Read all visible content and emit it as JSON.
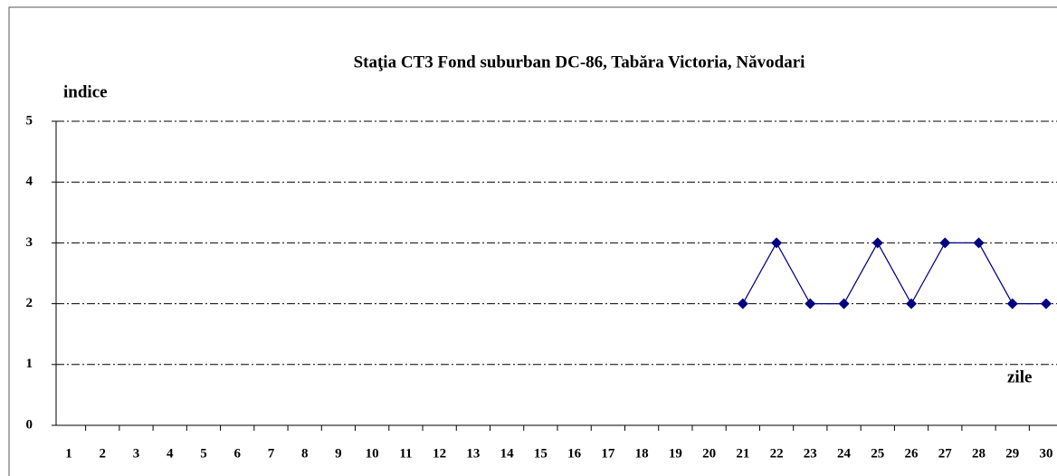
{
  "chart_data": {
    "type": "line",
    "title": "Staţia CT3 Fond suburban DC-86, Tabăra Victoria, Năvodari",
    "y_label": "indice",
    "x_label": "zile",
    "categories": [
      "1",
      "2",
      "3",
      "4",
      "5",
      "6",
      "7",
      "8",
      "9",
      "10",
      "11",
      "12",
      "13",
      "14",
      "15",
      "16",
      "17",
      "18",
      "19",
      "20",
      "21",
      "22",
      "23",
      "24",
      "25",
      "26",
      "27",
      "28",
      "29",
      "30"
    ],
    "series": [
      {
        "name": "indice",
        "color": "#000080",
        "values": [
          null,
          null,
          null,
          null,
          null,
          null,
          null,
          null,
          null,
          null,
          null,
          null,
          null,
          null,
          null,
          null,
          null,
          null,
          null,
          null,
          2,
          3,
          2,
          2,
          3,
          2,
          3,
          3,
          2,
          2
        ]
      }
    ],
    "ylim": [
      0,
      5
    ],
    "yticks": [
      0,
      1,
      2,
      3,
      4,
      5
    ],
    "grid": true
  }
}
